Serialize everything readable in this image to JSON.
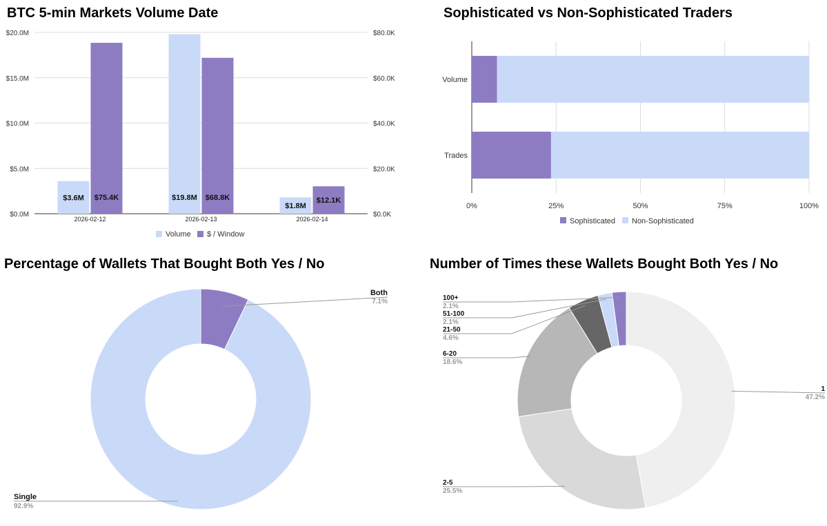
{
  "chart_data": [
    {
      "type": "bar",
      "title": "BTC 5-min Markets Volume Date",
      "categories": [
        "2026-02-12",
        "2026-02-13",
        "2026-02-14"
      ],
      "series": [
        {
          "name": "Volume",
          "axis": "left",
          "values": [
            3.6,
            19.8,
            1.8
          ],
          "labels": [
            "$3.6M",
            "$19.8M",
            "$1.8M"
          ],
          "color": "#c9daf8"
        },
        {
          "name": "$ /  Window",
          "axis": "right",
          "values": [
            75.4,
            68.8,
            12.1
          ],
          "labels": [
            "$75.4K",
            "$68.8K",
            "$12.1K"
          ],
          "color": "#8e7cc3"
        }
      ],
      "left_axis": {
        "ylim": [
          0,
          20
        ],
        "ticks": [
          "$0.0M",
          "$5.0M",
          "$10.0M",
          "$15.0M",
          "$20.0M"
        ]
      },
      "right_axis": {
        "ylim": [
          0,
          80
        ],
        "ticks": [
          "$0.0K",
          "$20.0K",
          "$40.0K",
          "$60.0K",
          "$80.0K"
        ]
      },
      "legend": "bottom"
    },
    {
      "type": "bar",
      "orientation": "horizontal",
      "stacked": "percent",
      "title": "Sophisticated vs Non-Sophisticated Traders",
      "categories": [
        "Volume",
        "Trades"
      ],
      "series": [
        {
          "name": "Sophisticated",
          "values": [
            7.5,
            23.5
          ],
          "color": "#8e7cc3"
        },
        {
          "name": "Non-Sophisticated",
          "values": [
            92.5,
            76.5
          ],
          "color": "#c9daf8"
        }
      ],
      "x_ticks": [
        "0%",
        "25%",
        "50%",
        "75%",
        "100%"
      ],
      "legend": "bottom"
    },
    {
      "type": "pie",
      "donut": true,
      "title": "Percentage of Wallets That Bought Both Yes / No",
      "slices": [
        {
          "label": "Both",
          "value": 7.1,
          "pct": "7.1%",
          "color": "#8e7cc3"
        },
        {
          "label": "Single",
          "value": 92.9,
          "pct": "92.9%",
          "color": "#c9daf8"
        }
      ]
    },
    {
      "type": "pie",
      "donut": true,
      "title": "Number of Times these Wallets Bought Both Yes / No",
      "slices": [
        {
          "label": "1",
          "value": 47.2,
          "pct": "47.2%",
          "color": "#efefef"
        },
        {
          "label": "2-5",
          "value": 25.5,
          "pct": "25.5%",
          "color": "#d9d9d9"
        },
        {
          "label": "6-20",
          "value": 18.6,
          "pct": "18.6%",
          "color": "#b7b7b7"
        },
        {
          "label": "21-50",
          "value": 4.6,
          "pct": "4.6%",
          "color": "#666666"
        },
        {
          "label": "51-100",
          "value": 2.1,
          "pct": "2.1%",
          "color": "#c9daf8"
        },
        {
          "label": "100+",
          "value": 2.1,
          "pct": "2.1%",
          "color": "#8e7cc3"
        }
      ]
    }
  ]
}
